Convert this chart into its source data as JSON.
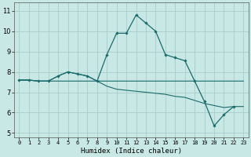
{
  "xlabel": "Humidex (Indice chaleur)",
  "xlim": [
    -0.5,
    23.5
  ],
  "ylim": [
    4.8,
    11.4
  ],
  "yticks": [
    5,
    6,
    7,
    8,
    9,
    10,
    11
  ],
  "xticks": [
    0,
    1,
    2,
    3,
    4,
    5,
    6,
    7,
    8,
    9,
    10,
    11,
    12,
    13,
    14,
    15,
    16,
    17,
    18,
    19,
    20,
    21,
    22,
    23
  ],
  "background_color": "#c8e8e5",
  "grid_color": "#a8ccc9",
  "line_color": "#1a6b6b",
  "lines": [
    {
      "x": [
        0,
        1,
        2,
        3,
        4,
        5,
        6,
        7,
        8,
        9,
        10,
        11,
        12,
        13,
        14,
        15,
        16,
        17,
        18,
        19,
        20,
        21,
        22,
        23
      ],
      "y": [
        7.6,
        7.6,
        7.55,
        7.55,
        7.55,
        7.55,
        7.55,
        7.55,
        7.55,
        7.55,
        7.55,
        7.55,
        7.55,
        7.55,
        7.55,
        7.55,
        7.55,
        7.55,
        7.55,
        7.55,
        7.55,
        7.55,
        7.55,
        7.55
      ],
      "marker": false,
      "lw": 0.8
    },
    {
      "x": [
        0,
        1,
        2,
        3,
        4,
        5,
        6,
        7,
        8,
        9,
        10,
        11,
        12,
        13,
        14,
        15,
        16,
        17,
        18,
        19,
        20,
        21,
        22,
        23
      ],
      "y": [
        7.6,
        7.6,
        7.55,
        7.55,
        7.8,
        8.0,
        7.9,
        7.8,
        7.55,
        7.3,
        7.15,
        7.1,
        7.05,
        7.0,
        6.95,
        6.9,
        6.8,
        6.75,
        6.6,
        6.45,
        6.35,
        6.25,
        6.3,
        6.3
      ],
      "marker": false,
      "lw": 0.8
    },
    {
      "x": [
        0,
        1,
        2,
        3,
        4,
        5,
        6,
        7,
        8,
        9,
        10,
        11,
        12,
        13,
        14,
        15,
        16,
        17,
        18,
        19,
        20,
        21,
        22
      ],
      "y": [
        7.6,
        7.6,
        7.55,
        7.55,
        7.8,
        8.0,
        7.9,
        7.8,
        7.55,
        8.85,
        9.9,
        9.9,
        10.8,
        10.4,
        10.0,
        8.85,
        8.7,
        8.55,
        7.55,
        6.55,
        5.35,
        5.9,
        6.3
      ],
      "marker": true,
      "lw": 0.9
    }
  ]
}
